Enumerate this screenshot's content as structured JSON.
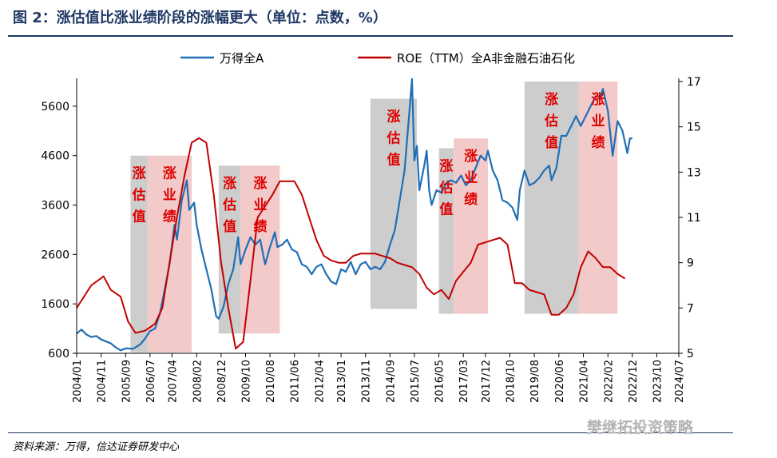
{
  "title": "图 2：涨估值比涨业绩阶段的涨幅更大（单位：点数，%）",
  "source": "资料来源：万得，信达证券研发中心",
  "watermark": "樊继拓投资策略",
  "chart_data": {
    "type": "line",
    "x_ticks": [
      "2004/01",
      "2004/11",
      "2005/09",
      "2006/07",
      "2007/04",
      "2008/02",
      "2008/12",
      "2009/10",
      "2010/08",
      "2011/06",
      "2012/04",
      "2013/01",
      "2013/11",
      "2014/09",
      "2015/07",
      "2016/05",
      "2017/03",
      "2017/12",
      "2018/10",
      "2019/08",
      "2020/06",
      "2021/04",
      "2022/02",
      "2022/12",
      "2023/10",
      "2024/07"
    ],
    "y_left_ticks": [
      600,
      1600,
      2600,
      3600,
      4600,
      5600
    ],
    "y_left_range": [
      600,
      6100
    ],
    "y_right_ticks": [
      5,
      7,
      9,
      11,
      13,
      15,
      17
    ],
    "y_right_range": [
      5,
      17
    ],
    "colors": {
      "wande": "#1f6fb5",
      "roe": "#c00000",
      "valuation_shade": "#c8c8c8",
      "earnings_shade": "#f2c4c4",
      "label": "#e00000"
    },
    "series": [
      {
        "name": "万得全A",
        "axis": "left",
        "points": [
          [
            "2004-01-01",
            1000
          ],
          [
            "2004-03-01",
            1080
          ],
          [
            "2004-05-01",
            980
          ],
          [
            "2004-07-01",
            930
          ],
          [
            "2004-09-01",
            950
          ],
          [
            "2004-11-01",
            880
          ],
          [
            "2005-01-01",
            840
          ],
          [
            "2005-03-01",
            800
          ],
          [
            "2005-05-01",
            720
          ],
          [
            "2005-07-01",
            660
          ],
          [
            "2005-09-01",
            700
          ],
          [
            "2005-12-01",
            690
          ],
          [
            "2006-03-01",
            780
          ],
          [
            "2006-05-01",
            900
          ],
          [
            "2006-07-01",
            1050
          ],
          [
            "2006-09-01",
            1100
          ],
          [
            "2006-11-01",
            1400
          ],
          [
            "2007-01-01",
            1900
          ],
          [
            "2007-03-01",
            2400
          ],
          [
            "2007-05-01",
            3200
          ],
          [
            "2007-06-01",
            2900
          ],
          [
            "2007-08-01",
            3700
          ],
          [
            "2007-10-01",
            4100
          ],
          [
            "2007-11-01",
            3500
          ],
          [
            "2008-01-01",
            3650
          ],
          [
            "2008-02-01",
            3200
          ],
          [
            "2008-04-01",
            2700
          ],
          [
            "2008-06-01",
            2300
          ],
          [
            "2008-08-01",
            1900
          ],
          [
            "2008-10-01",
            1350
          ],
          [
            "2008-11-01",
            1300
          ],
          [
            "2009-01-01",
            1550
          ],
          [
            "2009-03-01",
            2000
          ],
          [
            "2009-05-01",
            2300
          ],
          [
            "2009-07-01",
            2950
          ],
          [
            "2009-08-01",
            2400
          ],
          [
            "2009-10-01",
            2700
          ],
          [
            "2009-12-01",
            2950
          ],
          [
            "2010-02-01",
            2800
          ],
          [
            "2010-04-01",
            2900
          ],
          [
            "2010-06-01",
            2400
          ],
          [
            "2010-08-01",
            2750
          ],
          [
            "2010-10-01",
            3050
          ],
          [
            "2010-11-01",
            2750
          ],
          [
            "2011-01-01",
            2800
          ],
          [
            "2011-03-01",
            2900
          ],
          [
            "2011-05-01",
            2700
          ],
          [
            "2011-07-01",
            2650
          ],
          [
            "2011-09-01",
            2400
          ],
          [
            "2011-11-01",
            2350
          ],
          [
            "2012-01-01",
            2200
          ],
          [
            "2012-03-01",
            2350
          ],
          [
            "2012-05-01",
            2400
          ],
          [
            "2012-07-01",
            2200
          ],
          [
            "2012-09-01",
            2050
          ],
          [
            "2012-11-01",
            2000
          ],
          [
            "2013-01-01",
            2300
          ],
          [
            "2013-03-01",
            2250
          ],
          [
            "2013-05-01",
            2450
          ],
          [
            "2013-07-01",
            2200
          ],
          [
            "2013-09-01",
            2400
          ],
          [
            "2013-11-01",
            2450
          ],
          [
            "2014-01-01",
            2300
          ],
          [
            "2014-03-01",
            2350
          ],
          [
            "2014-05-01",
            2300
          ],
          [
            "2014-07-01",
            2450
          ],
          [
            "2014-09-01",
            2800
          ],
          [
            "2014-11-01",
            3100
          ],
          [
            "2015-01-01",
            3700
          ],
          [
            "2015-03-01",
            4300
          ],
          [
            "2015-05-01",
            5500
          ],
          [
            "2015-06-01",
            6150
          ],
          [
            "2015-07-01",
            4500
          ],
          [
            "2015-08-01",
            4800
          ],
          [
            "2015-09-01",
            3900
          ],
          [
            "2015-11-01",
            4400
          ],
          [
            "2015-12-01",
            4700
          ],
          [
            "2016-01-01",
            3900
          ],
          [
            "2016-02-01",
            3600
          ],
          [
            "2016-04-01",
            3900
          ],
          [
            "2016-06-01",
            3850
          ],
          [
            "2016-08-01",
            4050
          ],
          [
            "2016-10-01",
            4100
          ],
          [
            "2016-12-01",
            4050
          ],
          [
            "2017-02-01",
            4200
          ],
          [
            "2017-04-01",
            4000
          ],
          [
            "2017-06-01",
            4100
          ],
          [
            "2017-08-01",
            4350
          ],
          [
            "2017-10-01",
            4600
          ],
          [
            "2017-12-01",
            4500
          ],
          [
            "2018-01-01",
            4700
          ],
          [
            "2018-03-01",
            4300
          ],
          [
            "2018-05-01",
            4100
          ],
          [
            "2018-07-01",
            3700
          ],
          [
            "2018-09-01",
            3650
          ],
          [
            "2018-11-01",
            3550
          ],
          [
            "2019-01-01",
            3300
          ],
          [
            "2019-02-01",
            3900
          ],
          [
            "2019-04-01",
            4300
          ],
          [
            "2019-06-01",
            4000
          ],
          [
            "2019-08-01",
            4050
          ],
          [
            "2019-10-01",
            4150
          ],
          [
            "2019-12-01",
            4300
          ],
          [
            "2020-02-01",
            4400
          ],
          [
            "2020-03-01",
            4100
          ],
          [
            "2020-05-01",
            4350
          ],
          [
            "2020-07-01",
            5000
          ],
          [
            "2020-09-01",
            5000
          ],
          [
            "2020-11-01",
            5200
          ],
          [
            "2021-01-01",
            5400
          ],
          [
            "2021-03-01",
            5200
          ],
          [
            "2021-05-01",
            5400
          ],
          [
            "2021-07-01",
            5600
          ],
          [
            "2021-09-01",
            5800
          ],
          [
            "2021-11-01",
            5800
          ],
          [
            "2021-12-01",
            5950
          ],
          [
            "2022-02-01",
            5500
          ],
          [
            "2022-04-01",
            4600
          ],
          [
            "2022-06-01",
            5300
          ],
          [
            "2022-08-01",
            5100
          ],
          [
            "2022-10-01",
            4650
          ],
          [
            "2022-11-01",
            4950
          ],
          [
            "2022-12-01",
            4950
          ]
        ]
      },
      {
        "name": "ROE（TTM）全A非金融石油石化",
        "axis": "right",
        "points": [
          [
            "2004-01-01",
            7.0
          ],
          [
            "2004-07-01",
            8.0
          ],
          [
            "2004-12-01",
            8.4
          ],
          [
            "2005-03-01",
            7.8
          ],
          [
            "2005-07-01",
            7.5
          ],
          [
            "2005-10-01",
            6.4
          ],
          [
            "2006-01-01",
            5.9
          ],
          [
            "2006-05-01",
            6.0
          ],
          [
            "2006-09-01",
            6.3
          ],
          [
            "2006-12-01",
            7.0
          ],
          [
            "2007-03-01",
            9.0
          ],
          [
            "2007-06-01",
            11.0
          ],
          [
            "2007-09-01",
            12.8
          ],
          [
            "2007-12-01",
            14.3
          ],
          [
            "2008-03-01",
            14.5
          ],
          [
            "2008-06-01",
            14.3
          ],
          [
            "2008-09-01",
            12.0
          ],
          [
            "2008-12-01",
            9.0
          ],
          [
            "2009-03-01",
            7.0
          ],
          [
            "2009-06-01",
            5.2
          ],
          [
            "2009-09-01",
            5.5
          ],
          [
            "2009-12-01",
            8.2
          ],
          [
            "2010-03-01",
            11.0
          ],
          [
            "2010-06-01",
            11.5
          ],
          [
            "2010-09-01",
            12.0
          ],
          [
            "2010-12-01",
            12.6
          ],
          [
            "2011-03-01",
            12.6
          ],
          [
            "2011-06-01",
            12.6
          ],
          [
            "2011-09-01",
            12.0
          ],
          [
            "2011-12-01",
            11.0
          ],
          [
            "2012-03-01",
            10.0
          ],
          [
            "2012-06-01",
            9.3
          ],
          [
            "2012-09-01",
            9.1
          ],
          [
            "2012-12-01",
            9.0
          ],
          [
            "2013-03-01",
            9.0
          ],
          [
            "2013-06-01",
            9.3
          ],
          [
            "2013-09-01",
            9.4
          ],
          [
            "2013-12-01",
            9.4
          ],
          [
            "2014-03-01",
            9.4
          ],
          [
            "2014-06-01",
            9.3
          ],
          [
            "2014-09-01",
            9.2
          ],
          [
            "2014-12-01",
            9.0
          ],
          [
            "2015-03-01",
            8.9
          ],
          [
            "2015-06-01",
            8.8
          ],
          [
            "2015-09-01",
            8.5
          ],
          [
            "2015-12-01",
            7.9
          ],
          [
            "2016-03-01",
            7.6
          ],
          [
            "2016-06-01",
            7.8
          ],
          [
            "2016-09-01",
            7.4
          ],
          [
            "2016-12-01",
            8.2
          ],
          [
            "2017-03-01",
            8.6
          ],
          [
            "2017-06-01",
            9.0
          ],
          [
            "2017-09-01",
            9.8
          ],
          [
            "2017-12-01",
            9.9
          ],
          [
            "2018-03-01",
            10.0
          ],
          [
            "2018-06-01",
            10.1
          ],
          [
            "2018-09-01",
            9.8
          ],
          [
            "2018-12-01",
            8.1
          ],
          [
            "2019-03-01",
            8.1
          ],
          [
            "2019-06-01",
            7.8
          ],
          [
            "2019-09-01",
            7.7
          ],
          [
            "2019-12-01",
            7.6
          ],
          [
            "2020-03-01",
            6.7
          ],
          [
            "2020-06-01",
            6.7
          ],
          [
            "2020-09-01",
            7.0
          ],
          [
            "2020-12-01",
            7.6
          ],
          [
            "2021-03-01",
            8.8
          ],
          [
            "2021-06-01",
            9.5
          ],
          [
            "2021-09-01",
            9.2
          ],
          [
            "2021-12-01",
            8.8
          ],
          [
            "2022-03-01",
            8.8
          ],
          [
            "2022-06-01",
            8.5
          ],
          [
            "2022-09-01",
            8.3
          ]
        ]
      }
    ],
    "shaded_periods": [
      {
        "kind": "valuation",
        "label": "涨估值",
        "start": "2005-11-01",
        "end": "2006-06-01",
        "y_top_left": 4600,
        "y_bottom_left": 620
      },
      {
        "kind": "earnings",
        "label": "涨业绩",
        "start": "2006-06-01",
        "end": "2007-12-01",
        "y_top_left": 4600,
        "y_bottom_left": 620
      },
      {
        "kind": "valuation",
        "label": "涨估值",
        "start": "2008-11-01",
        "end": "2009-08-01",
        "y_top_left": 4400,
        "y_bottom_left": 1000
      },
      {
        "kind": "earnings",
        "label": "涨业绩",
        "start": "2009-08-01",
        "end": "2010-12-01",
        "y_top_left": 4400,
        "y_bottom_left": 1000
      },
      {
        "kind": "valuation",
        "label": "涨估值",
        "start": "2014-01-01",
        "end": "2015-08-01",
        "y_top_left": 5750,
        "y_bottom_left": 1500
      },
      {
        "kind": "valuation",
        "label": "涨估值",
        "start": "2016-05-01",
        "end": "2016-11-01",
        "y_top_left": 4750,
        "y_bottom_left": 1400
      },
      {
        "kind": "earnings",
        "label": "涨业绩",
        "start": "2016-11-01",
        "end": "2018-01-01",
        "y_top_left": 4950,
        "y_bottom_left": 1400
      },
      {
        "kind": "valuation",
        "label": "涨估值",
        "start": "2019-04-01",
        "end": "2021-02-01",
        "y_top_left": 6100,
        "y_bottom_left": 1400
      },
      {
        "kind": "earnings",
        "label": "涨业绩",
        "start": "2021-02-01",
        "end": "2022-06-01",
        "y_top_left": 6100,
        "y_bottom_left": 1400
      }
    ],
    "legend_placement": "top",
    "grid": false
  }
}
